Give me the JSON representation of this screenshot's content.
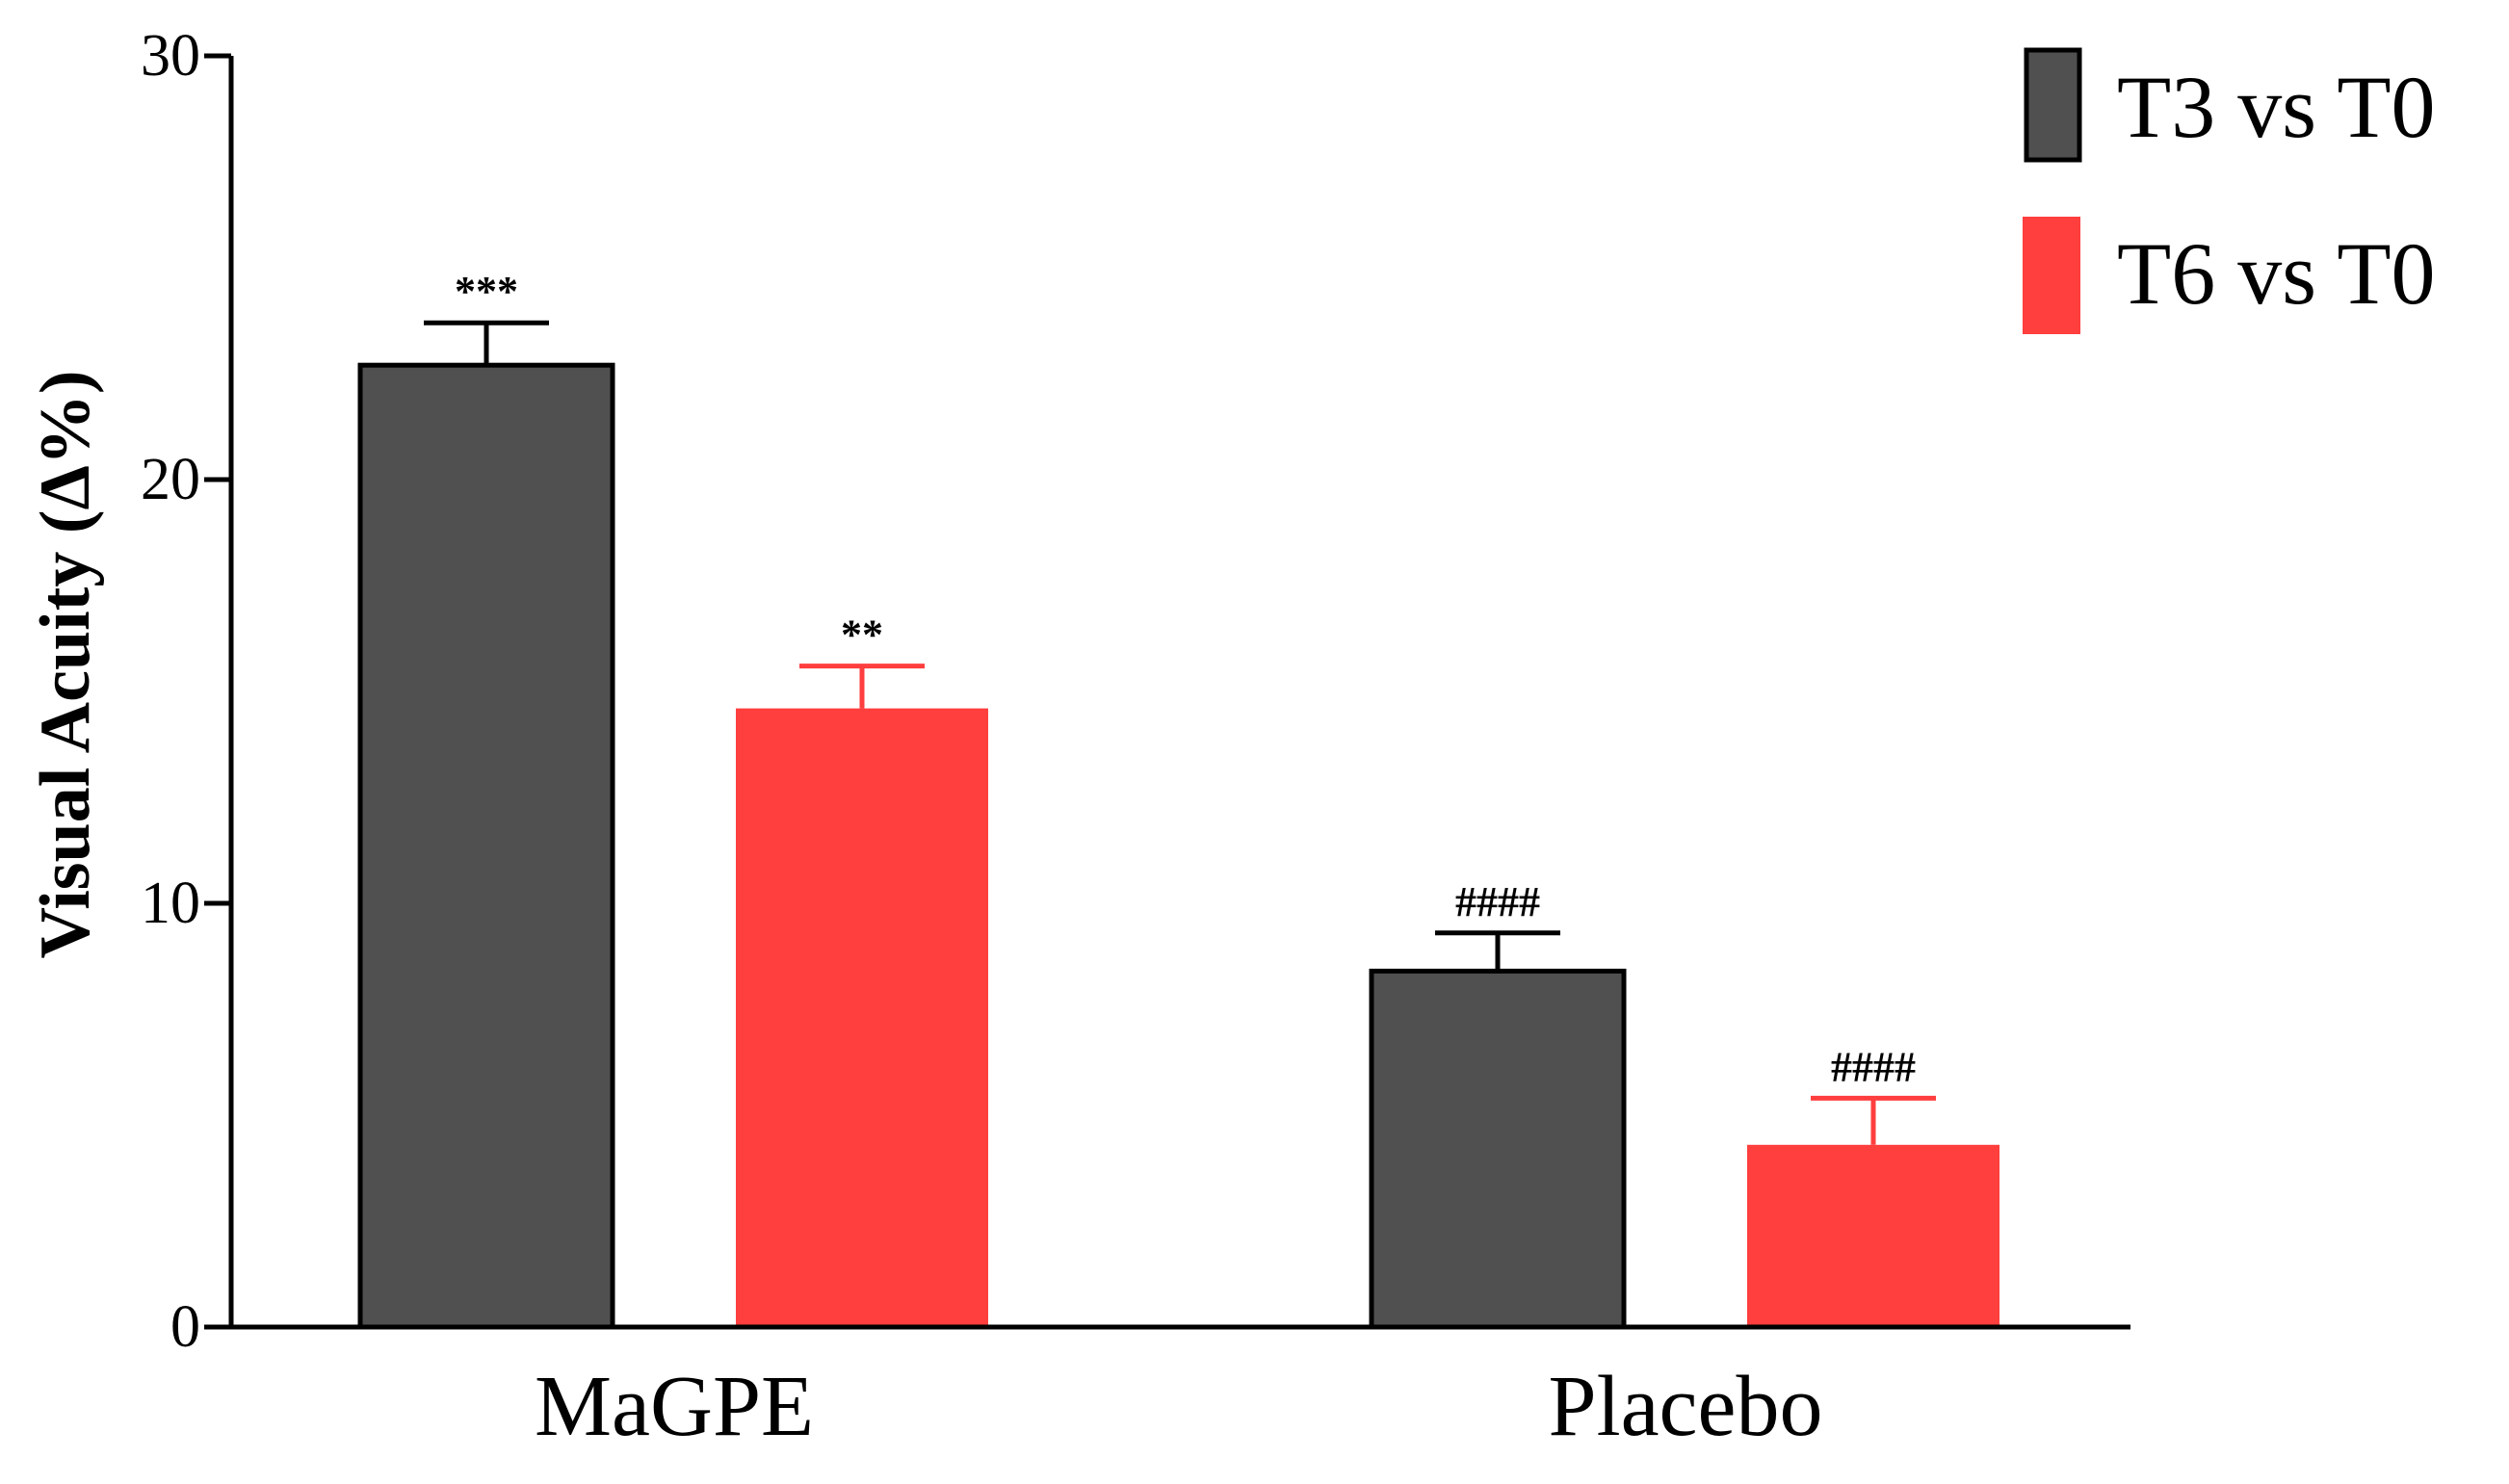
{
  "chart_data": {
    "type": "bar",
    "title": "",
    "xlabel": "",
    "ylabel": "Visual Acuity (Δ%)",
    "ylim": [
      0,
      30
    ],
    "yticks": [
      0,
      10,
      20,
      30
    ],
    "grid": false,
    "legend_position": "top-right",
    "categories": [
      "MaGPE",
      "Placebo"
    ],
    "series": [
      {
        "name": "T3 vs T0",
        "color": "#505050",
        "values": [
          22.7,
          8.4
        ],
        "errors": [
          1.0,
          0.9
        ],
        "significance": [
          "***",
          "####"
        ]
      },
      {
        "name": "T6 vs T0",
        "color": "#ff3e3e",
        "values": [
          14.6,
          4.3
        ],
        "errors": [
          1.0,
          1.1
        ],
        "significance": [
          "**",
          "####"
        ]
      }
    ]
  }
}
